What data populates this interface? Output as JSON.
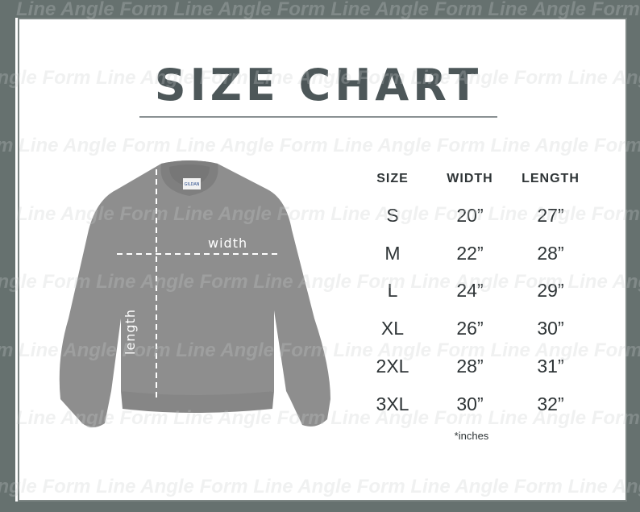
{
  "watermark": "Line Angle Form",
  "title": "SIZE CHART",
  "diagram": {
    "width_label": "width",
    "length_label": "length",
    "tag_text": "GILDAN",
    "shirt_color": "#8e8e8e"
  },
  "table": {
    "headers": [
      "SIZE",
      "WIDTH",
      "LENGTH"
    ],
    "rows": [
      [
        "S",
        "20”",
        "27”"
      ],
      [
        "M",
        "22”",
        "28”"
      ],
      [
        "L",
        "24”",
        "29”"
      ],
      [
        "XL",
        "26”",
        "30”"
      ],
      [
        "2XL",
        "28”",
        "31”"
      ],
      [
        "3XL",
        "30”",
        "32”"
      ]
    ],
    "note": "*inches"
  },
  "colors": {
    "frame": "#66716f",
    "title": "#4d5759",
    "text": "#2e3436"
  }
}
